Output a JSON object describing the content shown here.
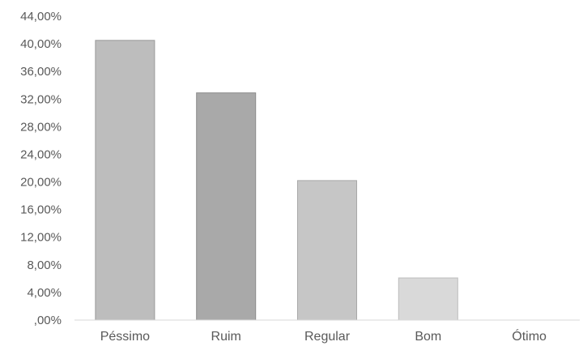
{
  "chart_data": {
    "type": "bar",
    "categories": [
      "Péssimo",
      "Ruim",
      "Regular",
      "Bom",
      "Ótimo"
    ],
    "values": [
      40.5,
      32.9,
      20.2,
      6.1,
      0
    ],
    "y_ticks": [
      ",00%",
      "4,00%",
      "8,00%",
      "12,00%",
      "16,00%",
      "20,00%",
      "24,00%",
      "28,00%",
      "32,00%",
      "36,00%",
      "40,00%",
      "44,00%"
    ],
    "ylim": [
      0,
      44
    ],
    "grid": false,
    "legend": "none",
    "colors": {
      "bar_fills": [
        "#bdbdbd",
        "#a9a9a9",
        "#c6c6c6",
        "#d9d9d9",
        "#e8e8e8"
      ],
      "bar_strokes": [
        "#999999",
        "#8c8c8c",
        "#a8a8a8",
        "#bcbcbc",
        "#cccccc"
      ],
      "axis": "#d9d9d9",
      "text": "#595959"
    }
  }
}
